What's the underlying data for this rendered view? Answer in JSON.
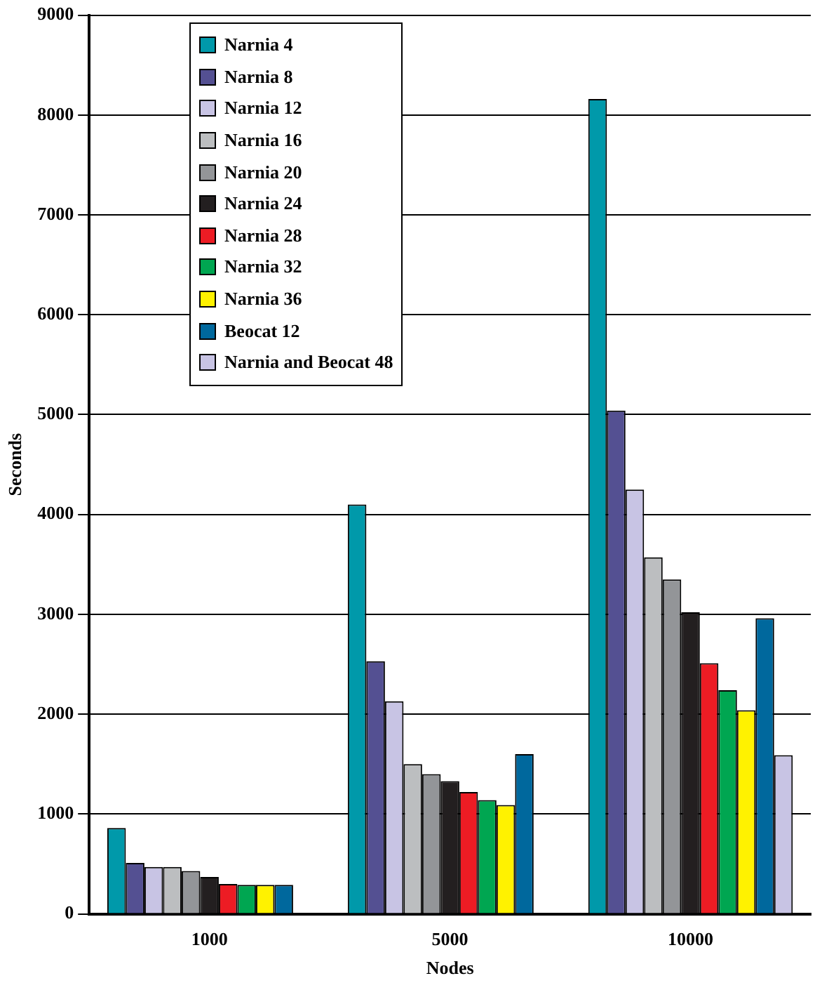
{
  "chart_data": {
    "type": "bar",
    "xlabel": "Nodes",
    "ylabel": "Seconds",
    "categories": [
      "1000",
      "5000",
      "10000"
    ],
    "series": [
      {
        "name": "Narnia 4",
        "color": "#0099aa",
        "values": [
          860,
          4100,
          8160
        ]
      },
      {
        "name": "Narnia 8",
        "color": "#545092",
        "values": [
          510,
          2530,
          5040
        ]
      },
      {
        "name": "Narnia 12",
        "color": "#c8c4e4",
        "values": [
          470,
          2130,
          4250
        ]
      },
      {
        "name": "Narnia 16",
        "color": "#bcbec0",
        "values": [
          470,
          1500,
          3570
        ]
      },
      {
        "name": "Narnia 20",
        "color": "#939598",
        "values": [
          430,
          1400,
          3350
        ]
      },
      {
        "name": "Narnia 24",
        "color": "#231f20",
        "values": [
          370,
          1330,
          3020
        ]
      },
      {
        "name": "Narnia 28",
        "color": "#ed1c24",
        "values": [
          300,
          1220,
          2510
        ]
      },
      {
        "name": "Narnia 32",
        "color": "#00a651",
        "values": [
          290,
          1140,
          2240
        ]
      },
      {
        "name": "Narnia 36",
        "color": "#fff200",
        "values": [
          290,
          1090,
          2040
        ]
      },
      {
        "name": "Beocat 12",
        "color": "#00689d",
        "values": [
          290,
          1600,
          2960
        ]
      },
      {
        "name": "Narnia and Beocat 48",
        "color": "#c8c4e4",
        "values": [
          null,
          null,
          1590
        ]
      }
    ],
    "ylim": [
      0,
      9000
    ],
    "yticks": [
      0,
      1000,
      2000,
      3000,
      4000,
      5000,
      6000,
      7000,
      8000,
      9000
    ],
    "grid": "y",
    "legend": "top left"
  }
}
